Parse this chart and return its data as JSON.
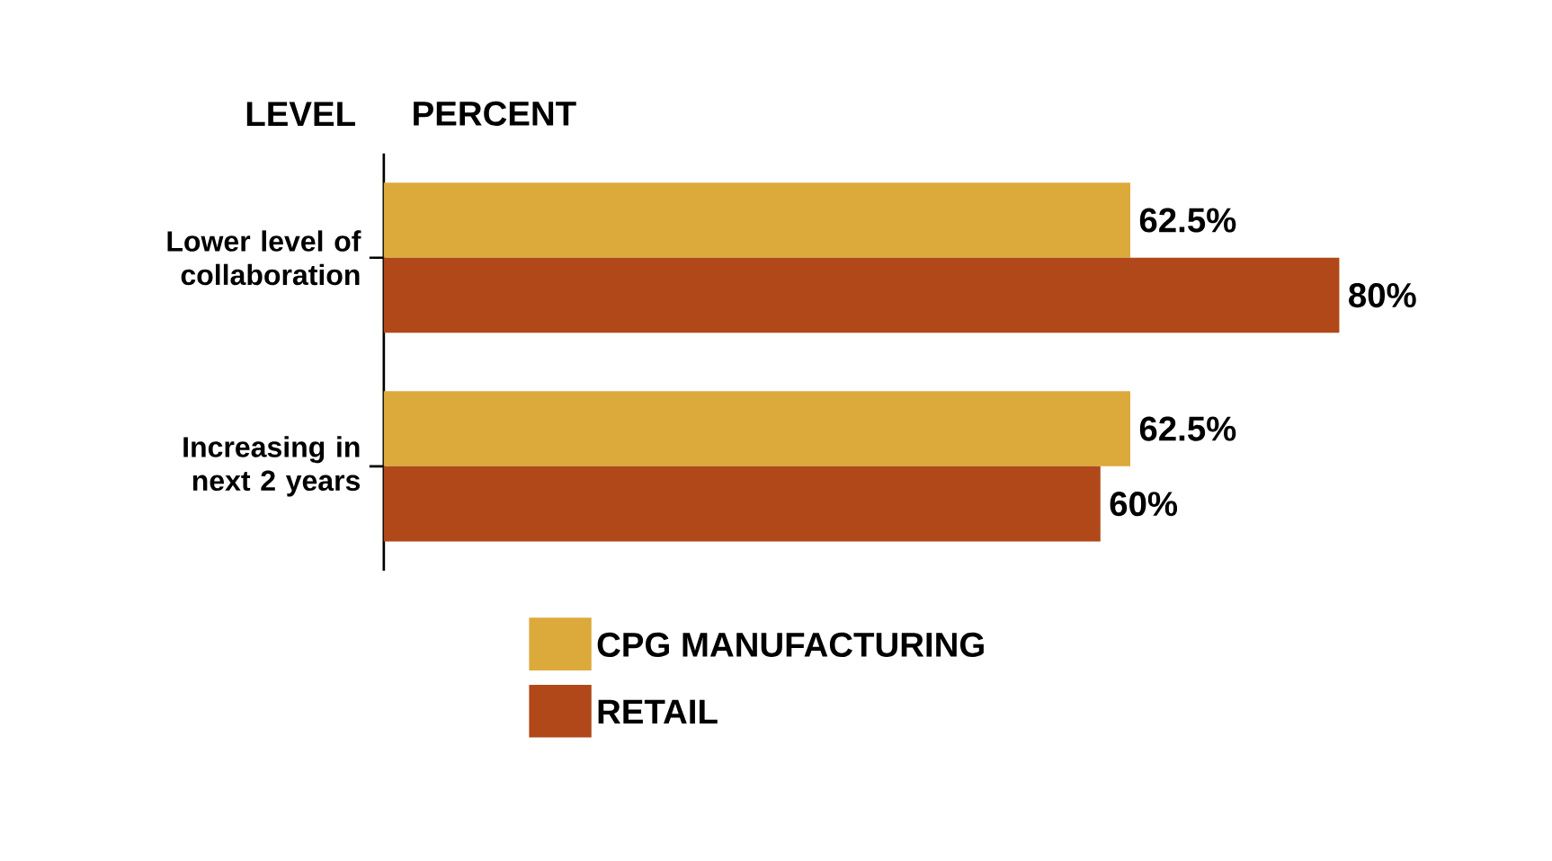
{
  "chart_data": {
    "type": "bar",
    "orientation": "horizontal",
    "xlabel": "PERCENT",
    "ylabel": "LEVEL",
    "categories": [
      "Lower level of collaboration",
      "Increasing in next 2 years"
    ],
    "series": [
      {
        "name": "CPG MANUFACTURING",
        "color": "#dcaa3a",
        "values": [
          62.5,
          62.5
        ],
        "value_labels": [
          "62.5%",
          "62.5%"
        ]
      },
      {
        "name": "RETAIL",
        "color": "#b0481a",
        "values": [
          80,
          60
        ],
        "value_labels": [
          "80%",
          "60%"
        ]
      }
    ],
    "legend": "bottom"
  }
}
